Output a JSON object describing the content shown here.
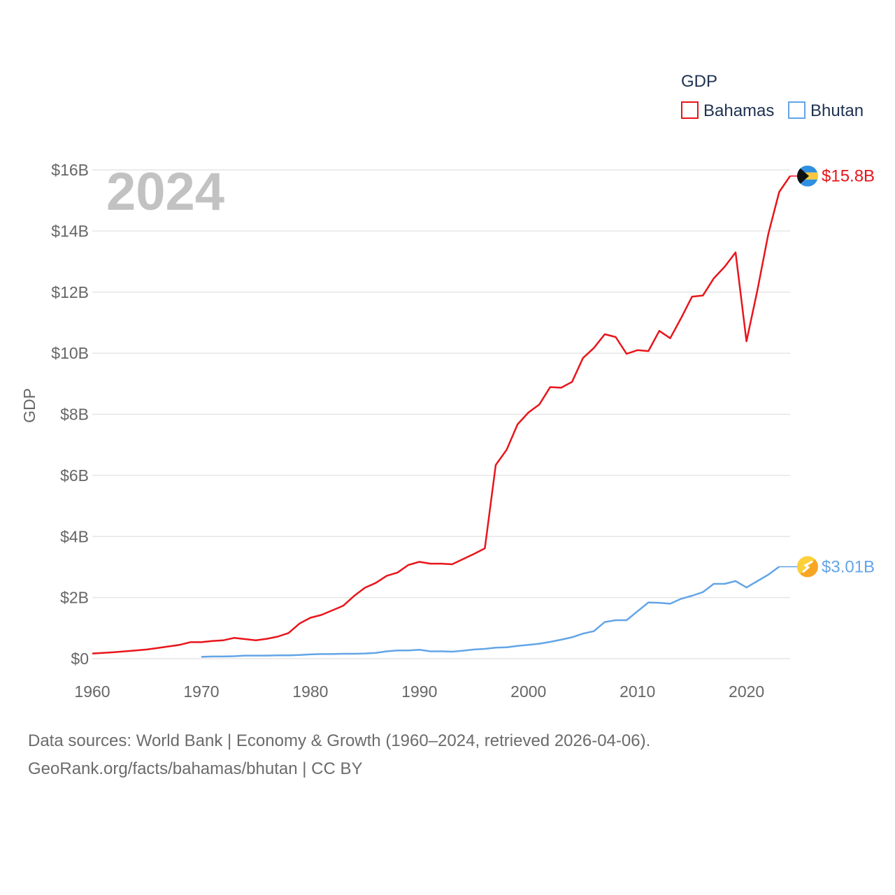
{
  "chart_data": {
    "type": "line",
    "title": "GDP",
    "ylabel": "GDP",
    "xlabel": "",
    "year_watermark": "2024",
    "xlim": [
      1960,
      2024
    ],
    "ylim": [
      0,
      16
    ],
    "x_ticks": [
      1960,
      1970,
      1980,
      1990,
      2000,
      2010,
      2020
    ],
    "y_ticks": [
      {
        "value": 0,
        "label": "$0"
      },
      {
        "value": 2,
        "label": "$2B"
      },
      {
        "value": 4,
        "label": "$4B"
      },
      {
        "value": 6,
        "label": "$6B"
      },
      {
        "value": 8,
        "label": "$8B"
      },
      {
        "value": 10,
        "label": "$10B"
      },
      {
        "value": 12,
        "label": "$12B"
      },
      {
        "value": 14,
        "label": "$14B"
      },
      {
        "value": 16,
        "label": "$16B"
      }
    ],
    "grid": true,
    "legend_position": "top-right",
    "value_unit": "billions of US$",
    "series": [
      {
        "name": "Bahamas",
        "color": "#e8151b",
        "end_label": "$15.8B",
        "flag_icon": "bahamas-flag-icon",
        "x": [
          1960,
          1961,
          1962,
          1963,
          1964,
          1965,
          1966,
          1967,
          1968,
          1969,
          1970,
          1971,
          1972,
          1973,
          1974,
          1975,
          1976,
          1977,
          1978,
          1979,
          1980,
          1981,
          1982,
          1983,
          1984,
          1985,
          1986,
          1987,
          1988,
          1989,
          1990,
          1991,
          1992,
          1993,
          1994,
          1995,
          1996,
          1997,
          1998,
          1999,
          2000,
          2001,
          2002,
          2003,
          2004,
          2005,
          2006,
          2007,
          2008,
          2009,
          2010,
          2011,
          2012,
          2013,
          2014,
          2015,
          2016,
          2017,
          2018,
          2019,
          2020,
          2021,
          2022,
          2023,
          2024
        ],
        "values": [
          0.17,
          0.19,
          0.21,
          0.24,
          0.27,
          0.3,
          0.35,
          0.4,
          0.45,
          0.54,
          0.54,
          0.58,
          0.6,
          0.68,
          0.64,
          0.6,
          0.65,
          0.72,
          0.84,
          1.15,
          1.34,
          1.43,
          1.58,
          1.73,
          2.05,
          2.32,
          2.48,
          2.71,
          2.82,
          3.07,
          3.17,
          3.11,
          3.11,
          3.09,
          3.26,
          3.43,
          3.61,
          6.34,
          6.84,
          7.67,
          8.06,
          8.32,
          8.89,
          8.87,
          9.06,
          9.84,
          10.17,
          10.62,
          10.53,
          9.98,
          10.1,
          10.07,
          10.73,
          10.49,
          11.15,
          11.85,
          11.89,
          12.45,
          12.83,
          13.3,
          10.39,
          12.06,
          13.9,
          15.28,
          15.8
        ]
      },
      {
        "name": "Bhutan",
        "color": "#63a5e8",
        "end_label": "$3.01B",
        "flag_icon": "bhutan-flag-icon",
        "x": [
          1970,
          1971,
          1972,
          1973,
          1974,
          1975,
          1976,
          1977,
          1978,
          1979,
          1980,
          1981,
          1982,
          1983,
          1984,
          1985,
          1986,
          1987,
          1988,
          1989,
          1990,
          1991,
          1992,
          1993,
          1994,
          1995,
          1996,
          1997,
          1998,
          1999,
          2000,
          2001,
          2002,
          2003,
          2004,
          2005,
          2006,
          2007,
          2008,
          2009,
          2010,
          2011,
          2012,
          2013,
          2014,
          2015,
          2016,
          2017,
          2018,
          2019,
          2020,
          2021,
          2022,
          2023
        ],
        "values": [
          0.06,
          0.07,
          0.07,
          0.08,
          0.1,
          0.1,
          0.1,
          0.11,
          0.11,
          0.12,
          0.14,
          0.15,
          0.15,
          0.16,
          0.16,
          0.17,
          0.19,
          0.24,
          0.27,
          0.27,
          0.29,
          0.24,
          0.24,
          0.23,
          0.26,
          0.3,
          0.32,
          0.36,
          0.37,
          0.42,
          0.45,
          0.49,
          0.55,
          0.62,
          0.7,
          0.82,
          0.9,
          1.2,
          1.26,
          1.26,
          1.55,
          1.84,
          1.83,
          1.8,
          1.96,
          2.06,
          2.18,
          2.45,
          2.45,
          2.54,
          2.33,
          2.54,
          2.75,
          3.01
        ]
      }
    ]
  },
  "footer": {
    "line1": "Data sources: World Bank | Economy & Growth (1960–2024, retrieved 2026-04-06).",
    "line2": "GeoRank.org/facts/bahamas/bhutan | CC BY"
  }
}
